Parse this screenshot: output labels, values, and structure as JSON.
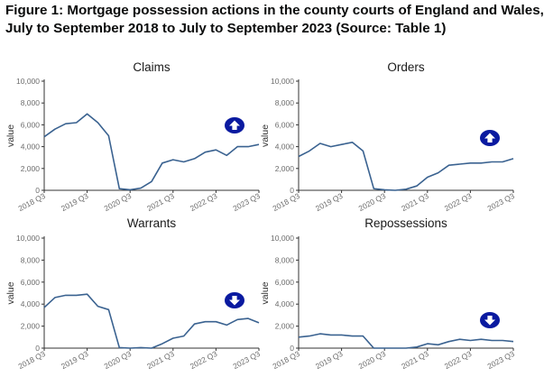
{
  "figure": {
    "title_line1": "Figure 1: Mortgage possession actions in the county courts of England and Wales,",
    "title_line2": "July to September 2018 to July to September 2023 (Source: Table 1)"
  },
  "colors": {
    "line": "#3a6290",
    "arrow_badge": "#0a1aa0",
    "axis": "#333333",
    "grid": "#eeeeee"
  },
  "chart_data": [
    {
      "type": "line",
      "title": "Claims",
      "ylabel": "value",
      "ylim": [
        0,
        10000
      ],
      "yticks": [
        "0",
        "2,000",
        "4,000",
        "6,000",
        "8,000",
        "10,000"
      ],
      "xticks": [
        "2018 Q3",
        "2019 Q3",
        "2020 Q3",
        "2021 Q3",
        "2022 Q3",
        "2023 Q3"
      ],
      "grid": false,
      "trend_icon": "arrow-up-icon",
      "x": [
        "2018 Q3",
        "2018 Q4",
        "2019 Q1",
        "2019 Q2",
        "2019 Q3",
        "2019 Q4",
        "2020 Q1",
        "2020 Q2",
        "2020 Q3",
        "2020 Q4",
        "2021 Q1",
        "2021 Q2",
        "2021 Q3",
        "2021 Q4",
        "2022 Q1",
        "2022 Q2",
        "2022 Q3",
        "2022 Q4",
        "2023 Q1",
        "2023 Q2",
        "2023 Q3"
      ],
      "values": [
        4900,
        5600,
        6100,
        6200,
        7000,
        6200,
        5000,
        150,
        50,
        200,
        800,
        2500,
        2800,
        2600,
        2900,
        3500,
        3700,
        3200,
        4000,
        4000,
        4200
      ]
    },
    {
      "type": "line",
      "title": "Orders",
      "ylabel": "value",
      "ylim": [
        0,
        10000
      ],
      "yticks": [
        "0",
        "2,000",
        "4,000",
        "6,000",
        "8,000",
        "10,000"
      ],
      "xticks": [
        "2018 Q3",
        "2019 Q3",
        "2020 Q3",
        "2021 Q3",
        "2022 Q3",
        "2023 Q3"
      ],
      "grid": false,
      "trend_icon": "arrow-up-icon",
      "x": [
        "2018 Q3",
        "2018 Q4",
        "2019 Q1",
        "2019 Q2",
        "2019 Q3",
        "2019 Q4",
        "2020 Q1",
        "2020 Q2",
        "2020 Q3",
        "2020 Q4",
        "2021 Q1",
        "2021 Q2",
        "2021 Q3",
        "2021 Q4",
        "2022 Q1",
        "2022 Q2",
        "2022 Q3",
        "2022 Q4",
        "2023 Q1",
        "2023 Q2",
        "2023 Q3"
      ],
      "values": [
        3100,
        3600,
        4300,
        4000,
        4200,
        4400,
        3600,
        150,
        50,
        0,
        100,
        400,
        1200,
        1600,
        2300,
        2400,
        2500,
        2500,
        2600,
        2600,
        2900
      ]
    },
    {
      "type": "line",
      "title": "Warrants",
      "ylabel": "value",
      "ylim": [
        0,
        10000
      ],
      "yticks": [
        "0",
        "2,000",
        "4,000",
        "6,000",
        "8,000",
        "10,000"
      ],
      "xticks": [
        "2018 Q3",
        "2019 Q3",
        "2020 Q3",
        "2021 Q3",
        "2022 Q3",
        "2023 Q3"
      ],
      "grid": false,
      "trend_icon": "arrow-down-icon",
      "x": [
        "2018 Q3",
        "2018 Q4",
        "2019 Q1",
        "2019 Q2",
        "2019 Q3",
        "2019 Q4",
        "2020 Q1",
        "2020 Q2",
        "2020 Q3",
        "2020 Q4",
        "2021 Q1",
        "2021 Q2",
        "2021 Q3",
        "2021 Q4",
        "2022 Q1",
        "2022 Q2",
        "2022 Q3",
        "2022 Q4",
        "2023 Q1",
        "2023 Q2",
        "2023 Q3"
      ],
      "values": [
        3700,
        4600,
        4800,
        4800,
        4900,
        3800,
        3500,
        50,
        0,
        50,
        0,
        400,
        900,
        1100,
        2200,
        2400,
        2400,
        2100,
        2600,
        2700,
        2300
      ]
    },
    {
      "type": "line",
      "title": "Repossessions",
      "ylabel": "value",
      "ylim": [
        0,
        10000
      ],
      "yticks": [
        "0",
        "2,000",
        "4,000",
        "6,000",
        "8,000",
        "10,000"
      ],
      "xticks": [
        "2018 Q3",
        "2019 Q3",
        "2020 Q3",
        "2021 Q3",
        "2022 Q3",
        "2023 Q3"
      ],
      "grid": false,
      "trend_icon": "arrow-down-icon",
      "x": [
        "2018 Q3",
        "2018 Q4",
        "2019 Q1",
        "2019 Q2",
        "2019 Q3",
        "2019 Q4",
        "2020 Q1",
        "2020 Q2",
        "2020 Q3",
        "2020 Q4",
        "2021 Q1",
        "2021 Q2",
        "2021 Q3",
        "2021 Q4",
        "2022 Q1",
        "2022 Q2",
        "2022 Q3",
        "2022 Q4",
        "2023 Q1",
        "2023 Q2",
        "2023 Q3"
      ],
      "values": [
        1000,
        1100,
        1300,
        1200,
        1200,
        1100,
        1100,
        0,
        0,
        0,
        0,
        100,
        400,
        300,
        600,
        800,
        700,
        800,
        700,
        700,
        600
      ]
    }
  ]
}
